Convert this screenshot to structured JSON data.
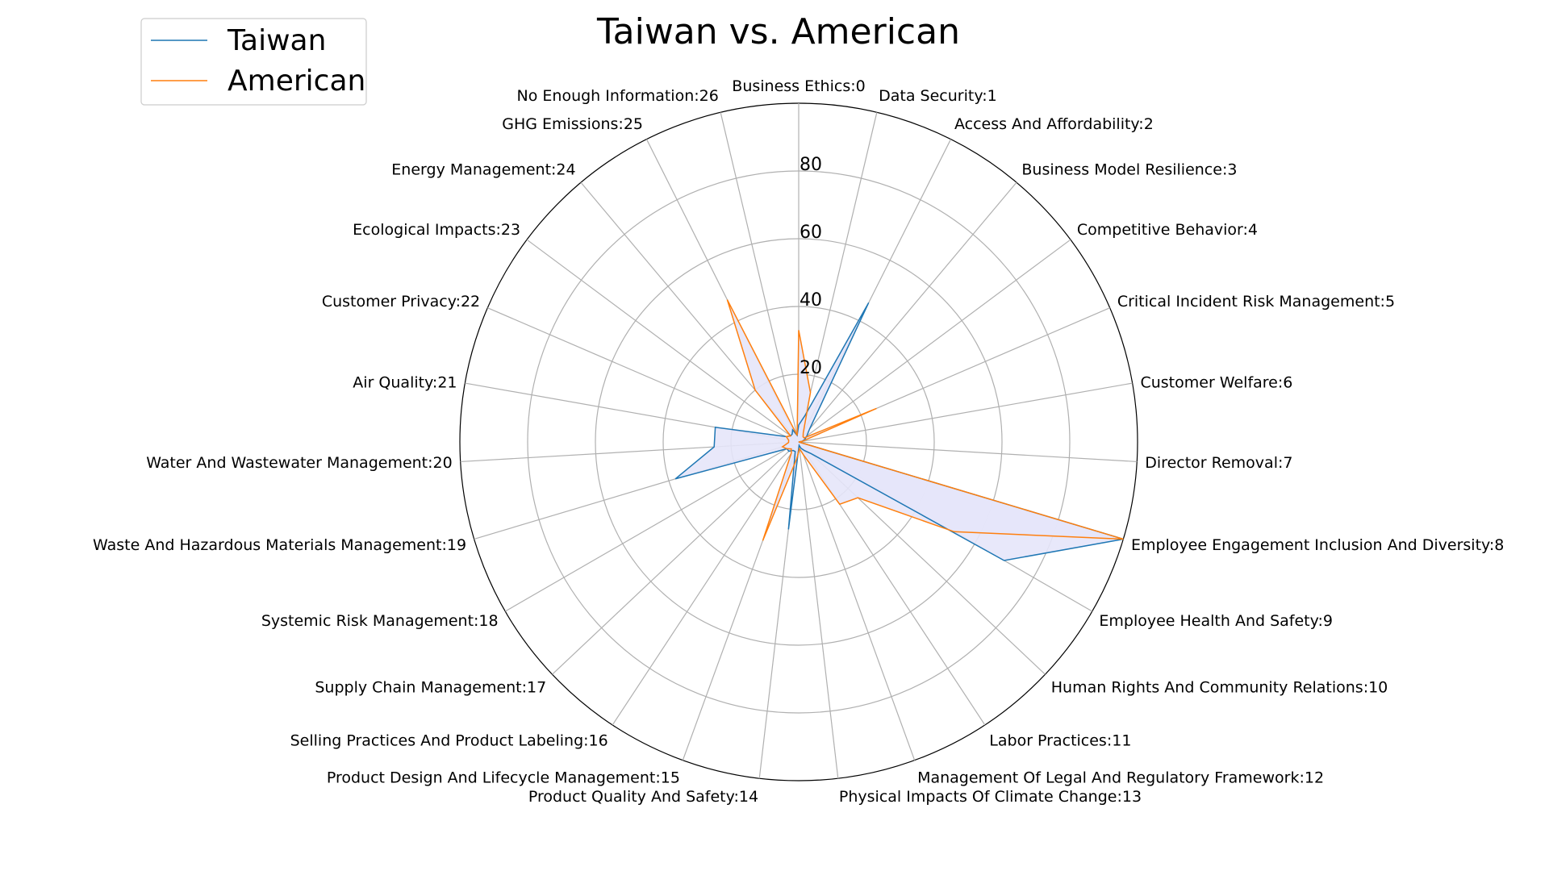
{
  "chart_data": {
    "type": "radar",
    "title": "Taiwan vs. American",
    "categories": [
      "Business Ethics:0",
      "Data Security:1",
      "Access And Affordability:2",
      "Business Model Resilience:3",
      "Competitive Behavior:4",
      "Critical Incident Risk Management:5",
      "Customer Welfare:6",
      "Director Removal:7",
      "Employee Engagement Inclusion And Diversity:8",
      "Employee Health And Safety:9",
      "Human Rights And Community Relations:10",
      "Labor Practices:11",
      "Management Of Legal And Regulatory Framework:12",
      "Physical Impacts Of Climate Change:13",
      "Product Quality And Safety:14",
      "Product Design And Lifecycle Management:15",
      "Selling Practices And Product Labeling:16",
      "Supply Chain Management:17",
      "Systemic Risk Management:18",
      "Waste And Hazardous Materials Management:19",
      "Water And Wastewater Management:20",
      "Air Quality:21",
      "Customer Privacy:22",
      "Ecological Impacts:23",
      "Energy Management:24",
      "GHG Emissions:25",
      "No Enough Information:26"
    ],
    "series": [
      {
        "name": "Taiwan",
        "color": "#1f77b4",
        "values": [
          5,
          8,
          46,
          5,
          3,
          2,
          1,
          0,
          100,
          70,
          5,
          3,
          2,
          1,
          26,
          3,
          3,
          4,
          4,
          38,
          25,
          25,
          4,
          3,
          3,
          4,
          2
        ]
      },
      {
        "name": "American",
        "color": "#ff7f0e",
        "values": [
          33,
          15,
          3,
          2,
          2,
          25,
          1,
          0,
          100,
          53,
          24,
          22,
          4,
          2,
          5,
          31,
          4,
          3,
          4,
          5,
          3,
          3,
          4,
          3,
          20,
          47,
          2
        ]
      }
    ],
    "fill_color": "#e5e5fa",
    "r_ticks": [
      "20",
      "40",
      "60",
      "80"
    ],
    "r_tick_values": [
      20,
      40,
      60,
      80
    ],
    "r_max": 100,
    "grid": true,
    "legend_position": "top-left"
  }
}
